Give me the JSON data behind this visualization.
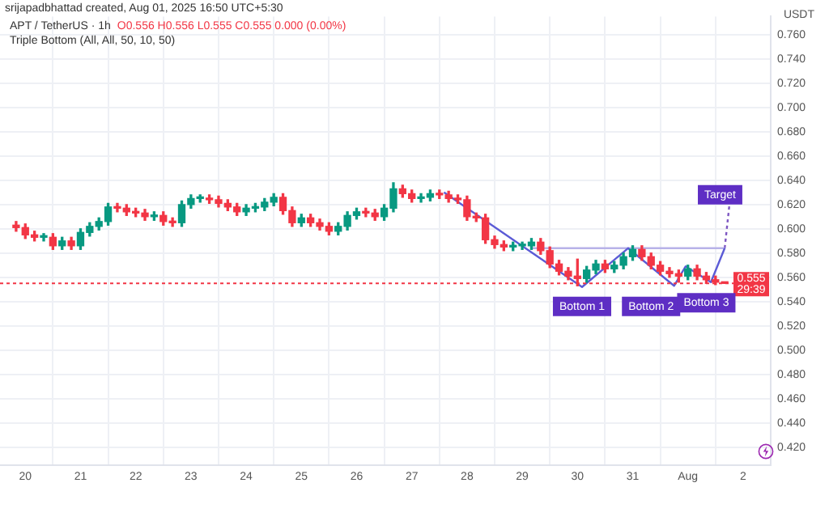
{
  "chart_data": {
    "type": "candlestick",
    "title": "APT / TetherUS · 1h",
    "subtitle": "Triple Bottom (All, All, 50, 10, 50)",
    "ylabel": "USDT",
    "annotations": [
      "srijapadbhattad created, Aug 01, 2025 16:50 UTC+5:30",
      "O0.556 H0.556 L0.555 C0.555 0.000 (0.00%)",
      "29:39",
      {
        "text": "Bottom 1",
        "x": "2025-07-30T02:00",
        "y": 0.536
      },
      {
        "text": "Bottom 2",
        "x": "2025-07-31T08:00",
        "y": 0.536
      },
      {
        "text": "Bottom 3",
        "x": "2025-08-01T08:00",
        "y": 0.539
      },
      {
        "text": "Target",
        "x": "2025-08-01T14:00",
        "y": 0.628
      }
    ],
    "x": [
      "2025-07-19T20:00",
      "2025-07-20T00:00",
      "2025-07-20T04:00",
      "2025-07-20T08:00",
      "2025-07-20T12:00",
      "2025-07-20T16:00",
      "2025-07-20T20:00",
      "2025-07-21T00:00",
      "2025-07-21T04:00",
      "2025-07-21T08:00",
      "2025-07-21T12:00",
      "2025-07-21T16:00",
      "2025-07-21T20:00",
      "2025-07-22T00:00",
      "2025-07-22T04:00",
      "2025-07-22T08:00",
      "2025-07-22T12:00",
      "2025-07-22T16:00",
      "2025-07-22T20:00",
      "2025-07-23T00:00",
      "2025-07-23T04:00",
      "2025-07-23T08:00",
      "2025-07-23T12:00",
      "2025-07-23T16:00",
      "2025-07-23T20:00",
      "2025-07-24T00:00",
      "2025-07-24T04:00",
      "2025-07-24T08:00",
      "2025-07-24T12:00",
      "2025-07-24T16:00",
      "2025-07-24T20:00",
      "2025-07-25T00:00",
      "2025-07-25T04:00",
      "2025-07-25T08:00",
      "2025-07-25T12:00",
      "2025-07-25T16:00",
      "2025-07-25T20:00",
      "2025-07-26T00:00",
      "2025-07-26T04:00",
      "2025-07-26T08:00",
      "2025-07-26T12:00",
      "2025-07-26T16:00",
      "2025-07-26T20:00",
      "2025-07-27T00:00",
      "2025-07-27T04:00",
      "2025-07-27T08:00",
      "2025-07-27T12:00",
      "2025-07-27T16:00",
      "2025-07-27T20:00",
      "2025-07-28T00:00",
      "2025-07-28T04:00",
      "2025-07-28T08:00",
      "2025-07-28T12:00",
      "2025-07-28T16:00",
      "2025-07-28T20:00",
      "2025-07-29T00:00",
      "2025-07-29T04:00",
      "2025-07-29T08:00",
      "2025-07-29T12:00",
      "2025-07-29T16:00",
      "2025-07-29T20:00",
      "2025-07-30T00:00",
      "2025-07-30T04:00",
      "2025-07-30T08:00",
      "2025-07-30T12:00",
      "2025-07-30T16:00",
      "2025-07-30T20:00",
      "2025-07-31T00:00",
      "2025-07-31T04:00",
      "2025-07-31T08:00",
      "2025-07-31T12:00",
      "2025-07-31T16:00",
      "2025-07-31T20:00",
      "2025-08-01T00:00",
      "2025-08-01T04:00",
      "2025-08-01T08:00",
      "2025-08-01T12:00",
      "2025-08-01T16:00"
    ],
    "ohlc": [
      [
        0.603,
        0.606,
        0.598,
        0.601
      ],
      [
        0.601,
        0.604,
        0.592,
        0.595
      ],
      [
        0.595,
        0.598,
        0.59,
        0.593
      ],
      [
        0.593,
        0.596,
        0.59,
        0.593
      ],
      [
        0.593,
        0.596,
        0.583,
        0.586
      ],
      [
        0.586,
        0.593,
        0.583,
        0.59
      ],
      [
        0.59,
        0.593,
        0.583,
        0.586
      ],
      [
        0.586,
        0.6,
        0.583,
        0.597
      ],
      [
        0.597,
        0.605,
        0.594,
        0.602
      ],
      [
        0.602,
        0.609,
        0.599,
        0.606
      ],
      [
        0.606,
        0.621,
        0.603,
        0.618
      ],
      [
        0.618,
        0.621,
        0.614,
        0.617
      ],
      [
        0.617,
        0.62,
        0.611,
        0.614
      ],
      [
        0.614,
        0.617,
        0.61,
        0.613
      ],
      [
        0.613,
        0.616,
        0.607,
        0.61
      ],
      [
        0.61,
        0.614,
        0.607,
        0.611
      ],
      [
        0.611,
        0.614,
        0.603,
        0.606
      ],
      [
        0.606,
        0.609,
        0.602,
        0.605
      ],
      [
        0.605,
        0.623,
        0.602,
        0.62
      ],
      [
        0.62,
        0.628,
        0.617,
        0.625
      ],
      [
        0.625,
        0.628,
        0.622,
        0.625
      ],
      [
        0.625,
        0.628,
        0.621,
        0.624
      ],
      [
        0.624,
        0.627,
        0.618,
        0.621
      ],
      [
        0.621,
        0.624,
        0.615,
        0.618
      ],
      [
        0.618,
        0.621,
        0.611,
        0.614
      ],
      [
        0.614,
        0.62,
        0.611,
        0.617
      ],
      [
        0.617,
        0.621,
        0.614,
        0.618
      ],
      [
        0.618,
        0.625,
        0.615,
        0.622
      ],
      [
        0.622,
        0.629,
        0.619,
        0.626
      ],
      [
        0.626,
        0.629,
        0.612,
        0.615
      ],
      [
        0.615,
        0.618,
        0.602,
        0.605
      ],
      [
        0.605,
        0.612,
        0.602,
        0.609
      ],
      [
        0.609,
        0.612,
        0.602,
        0.605
      ],
      [
        0.605,
        0.608,
        0.599,
        0.602
      ],
      [
        0.602,
        0.605,
        0.595,
        0.598
      ],
      [
        0.598,
        0.605,
        0.595,
        0.602
      ],
      [
        0.602,
        0.614,
        0.599,
        0.611
      ],
      [
        0.611,
        0.617,
        0.608,
        0.614
      ],
      [
        0.614,
        0.617,
        0.61,
        0.613
      ],
      [
        0.613,
        0.616,
        0.607,
        0.61
      ],
      [
        0.61,
        0.62,
        0.607,
        0.617
      ],
      [
        0.617,
        0.638,
        0.614,
        0.633
      ],
      [
        0.633,
        0.636,
        0.626,
        0.629
      ],
      [
        0.629,
        0.632,
        0.622,
        0.625
      ],
      [
        0.625,
        0.629,
        0.622,
        0.626
      ],
      [
        0.626,
        0.632,
        0.623,
        0.629
      ],
      [
        0.629,
        0.632,
        0.625,
        0.628
      ],
      [
        0.628,
        0.631,
        0.622,
        0.625
      ],
      [
        0.625,
        0.628,
        0.621,
        0.624
      ],
      [
        0.624,
        0.627,
        0.607,
        0.61
      ],
      [
        0.61,
        0.613,
        0.606,
        0.609
      ],
      [
        0.609,
        0.612,
        0.588,
        0.591
      ],
      [
        0.591,
        0.594,
        0.584,
        0.587
      ],
      [
        0.587,
        0.59,
        0.582,
        0.585
      ],
      [
        0.585,
        0.589,
        0.582,
        0.586
      ],
      [
        0.586,
        0.589,
        0.583,
        0.586
      ],
      [
        0.586,
        0.592,
        0.583,
        0.589
      ],
      [
        0.589,
        0.592,
        0.579,
        0.582
      ],
      [
        0.582,
        0.585,
        0.568,
        0.571
      ],
      [
        0.571,
        0.574,
        0.562,
        0.565
      ],
      [
        0.565,
        0.568,
        0.558,
        0.561
      ],
      [
        0.561,
        0.575,
        0.553,
        0.559
      ],
      [
        0.559,
        0.569,
        0.556,
        0.566
      ],
      [
        0.566,
        0.574,
        0.563,
        0.571
      ],
      [
        0.571,
        0.574,
        0.564,
        0.567
      ],
      [
        0.567,
        0.573,
        0.564,
        0.57
      ],
      [
        0.57,
        0.58,
        0.567,
        0.577
      ],
      [
        0.577,
        0.586,
        0.574,
        0.583
      ],
      [
        0.583,
        0.586,
        0.574,
        0.577
      ],
      [
        0.577,
        0.58,
        0.567,
        0.57
      ],
      [
        0.57,
        0.573,
        0.562,
        0.565
      ],
      [
        0.565,
        0.568,
        0.56,
        0.563
      ],
      [
        0.563,
        0.566,
        0.556,
        0.561
      ],
      [
        0.561,
        0.57,
        0.558,
        0.567
      ],
      [
        0.567,
        0.57,
        0.558,
        0.561
      ],
      [
        0.561,
        0.564,
        0.555,
        0.558
      ],
      [
        0.558,
        0.561,
        0.554,
        0.556
      ],
      [
        0.556,
        0.556,
        0.555,
        0.555
      ]
    ],
    "series": [
      {
        "type": "line",
        "color": "#5b5bd6",
        "line_style": "solid",
        "x": [
          "2025-07-27T14:00",
          "2025-07-30T02:00",
          "2025-07-30T22:00",
          "2025-07-31T18:00",
          "2025-07-31T23:00",
          "2025-08-01T10:00",
          "2025-08-01T16:00"
        ],
        "values": [
          0.63,
          0.552,
          0.584,
          0.553,
          0.569,
          0.556,
          0.584
        ]
      },
      {
        "type": "line",
        "color": "#b7b2e8",
        "line_style": "solid",
        "x": [
          "2025-07-29T04:00",
          "2025-08-01T16:00"
        ],
        "values": [
          0.584,
          0.584
        ]
      },
      {
        "type": "line",
        "color": "#7e57c2",
        "line_style": "dotted",
        "x": [
          "2025-08-01T16:00",
          "2025-08-01T18:00"
        ],
        "values": [
          0.584,
          0.619
        ]
      }
    ],
    "ref_lines": [
      {
        "axis": "y",
        "value": 0.555,
        "label": "0.555",
        "color": "#f23645",
        "line_style": "dotted"
      }
    ],
    "xlim": [
      "2025-07-19T13:00",
      "2025-08-02T12:00"
    ],
    "xticks": [
      {
        "value": "2025-07-20",
        "label": "20"
      },
      {
        "value": "2025-07-21",
        "label": "21"
      },
      {
        "value": "2025-07-22",
        "label": "22"
      },
      {
        "value": "2025-07-23",
        "label": "23"
      },
      {
        "value": "2025-07-24",
        "label": "24"
      },
      {
        "value": "2025-07-25",
        "label": "25"
      },
      {
        "value": "2025-07-26",
        "label": "26"
      },
      {
        "value": "2025-07-27",
        "label": "27"
      },
      {
        "value": "2025-07-28",
        "label": "28"
      },
      {
        "value": "2025-07-29",
        "label": "29"
      },
      {
        "value": "2025-07-30",
        "label": "30"
      },
      {
        "value": "2025-07-31",
        "label": "31"
      },
      {
        "value": "2025-08-01",
        "label": "Aug"
      },
      {
        "value": "2025-08-02",
        "label": "2"
      }
    ],
    "ylim": [
      0.405,
      0.775
    ],
    "yticks": [
      {
        "value": 0.42,
        "label": "0.420"
      },
      {
        "value": 0.44,
        "label": "0.440"
      },
      {
        "value": 0.46,
        "label": "0.460"
      },
      {
        "value": 0.48,
        "label": "0.480"
      },
      {
        "value": 0.5,
        "label": "0.500"
      },
      {
        "value": 0.52,
        "label": "0.520"
      },
      {
        "value": 0.54,
        "label": "0.540"
      },
      {
        "value": 0.56,
        "label": "0.560"
      },
      {
        "value": 0.58,
        "label": "0.580"
      },
      {
        "value": 0.6,
        "label": "0.600"
      },
      {
        "value": 0.62,
        "label": "0.620"
      },
      {
        "value": 0.64,
        "label": "0.640"
      },
      {
        "value": 0.66,
        "label": "0.660"
      },
      {
        "value": 0.68,
        "label": "0.680"
      },
      {
        "value": 0.7,
        "label": "0.700"
      },
      {
        "value": 0.72,
        "label": "0.720"
      },
      {
        "value": 0.74,
        "label": "0.740"
      },
      {
        "value": 0.76,
        "label": "0.760"
      }
    ],
    "grid": true,
    "marker": "none"
  }
}
